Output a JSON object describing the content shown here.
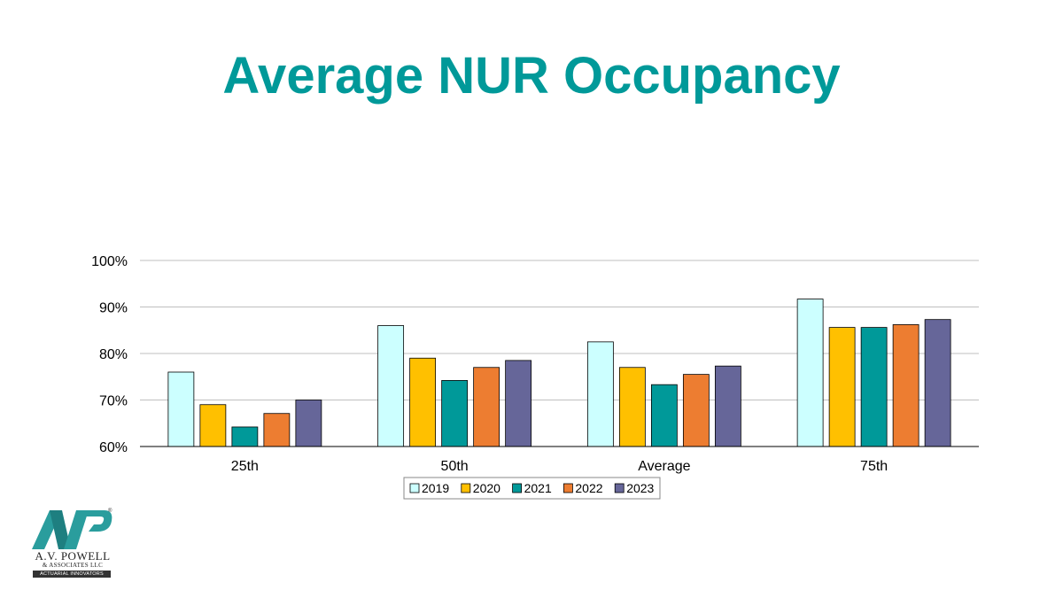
{
  "slide": {
    "title": "Average NUR Occupancy",
    "title_color": "#009999"
  },
  "chart_data": {
    "type": "bar",
    "categories": [
      "25th",
      "50th",
      "Average",
      "75th"
    ],
    "series": [
      {
        "name": "2019",
        "color": "#CCFFFF",
        "values": [
          76,
          86,
          82.5,
          91.7
        ]
      },
      {
        "name": "2020",
        "color": "#FFC000",
        "values": [
          69,
          79,
          77,
          85.6
        ]
      },
      {
        "name": "2021",
        "color": "#009999",
        "values": [
          64.2,
          74.2,
          73.3,
          85.6
        ]
      },
      {
        "name": "2022",
        "color": "#ED7D31",
        "values": [
          67.1,
          77,
          75.5,
          86.2
        ]
      },
      {
        "name": "2023",
        "color": "#666699",
        "values": [
          70,
          78.5,
          77.3,
          87.3
        ]
      }
    ],
    "yticks": [
      "60%",
      "70%",
      "80%",
      "90%",
      "100%"
    ],
    "ylim": [
      60,
      100
    ],
    "grid": true,
    "legend": "bottom"
  },
  "logo": {
    "name": "A.V. POWELL",
    "sub": "& ASSOCIATES LLC",
    "tagline": "ACTUARIAL INNOVATORS",
    "color": "#2A9D9D"
  }
}
